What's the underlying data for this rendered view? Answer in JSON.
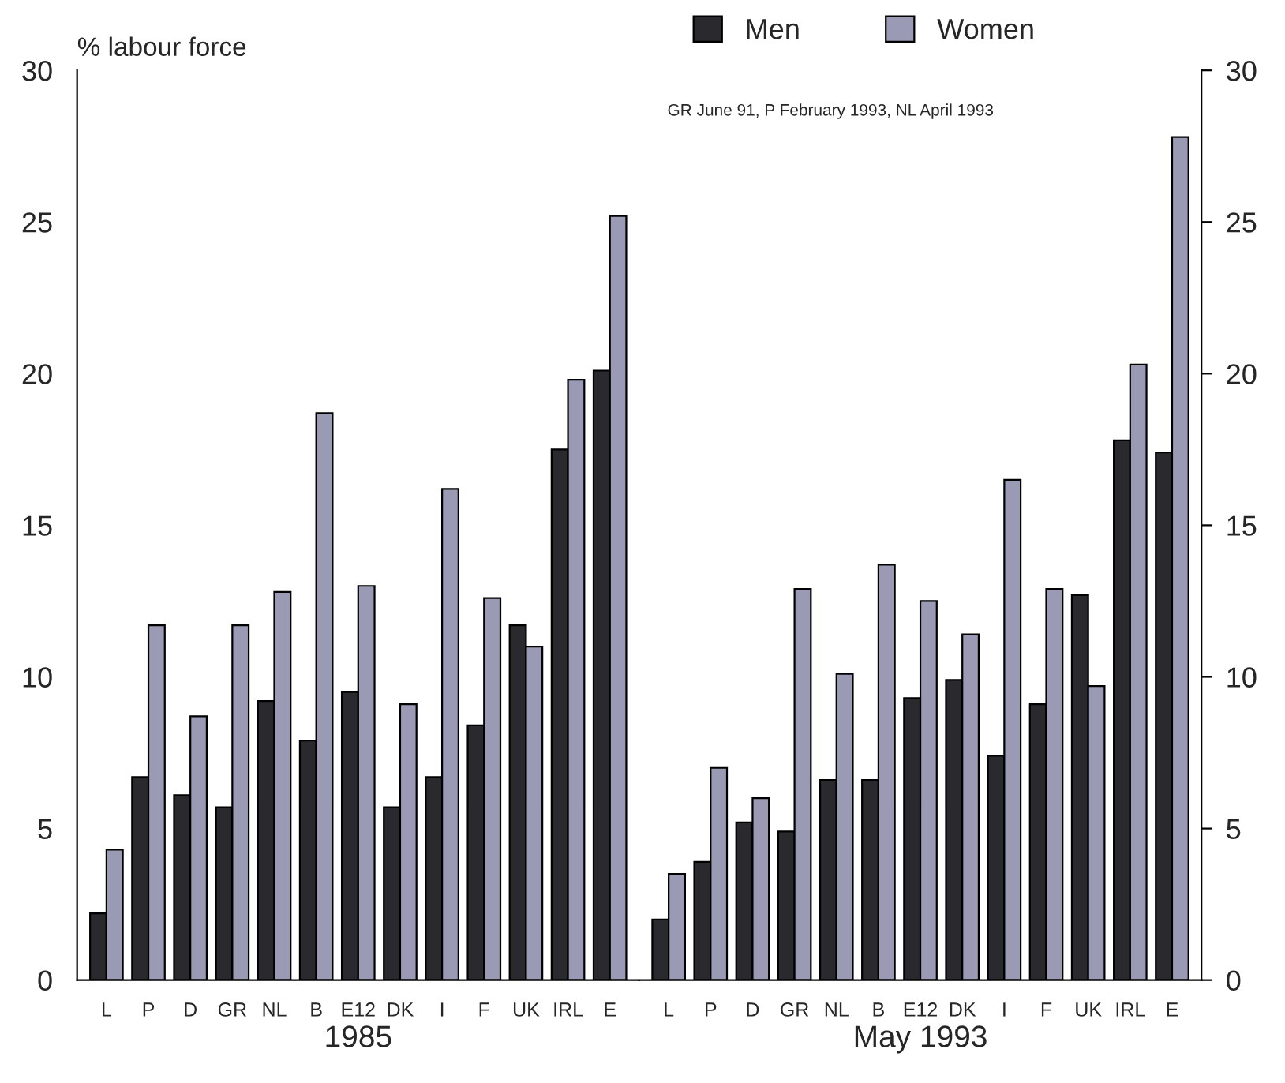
{
  "chart_data": [
    {
      "type": "bar",
      "xlabel": "1985",
      "ylabel": "% labour force",
      "categories": [
        "L",
        "P",
        "D",
        "GR",
        "NL",
        "B",
        "E12",
        "DK",
        "I",
        "F",
        "UK",
        "IRL",
        "E"
      ],
      "series": [
        {
          "color": "#2a2a2e",
          "values": [
            2.2,
            6.7,
            6.1,
            5.7,
            9.2,
            7.9,
            9.5,
            5.7,
            6.7,
            8.4,
            11.7,
            17.5,
            20.1
          ]
        },
        {
          "color": "#9a9ab4",
          "values": [
            4.3,
            11.7,
            8.7,
            11.7,
            12.8,
            18.7,
            13.0,
            9.1,
            16.2,
            12.6,
            11.0,
            19.8,
            25.2
          ]
        }
      ],
      "ylim": [
        0,
        30
      ],
      "yticks": [
        0,
        5,
        10,
        15,
        20,
        25,
        30
      ],
      "grid": false,
      "legend": false
    },
    {
      "type": "bar",
      "xlabel": "May 1993",
      "categories": [
        "L",
        "P",
        "D",
        "GR",
        "NL",
        "B",
        "E12",
        "DK",
        "I",
        "F",
        "UK",
        "IRL",
        "E"
      ],
      "series": [
        {
          "name": "Men",
          "color": "#2a2a2e",
          "axis": "y2",
          "values": [
            2.0,
            3.9,
            5.2,
            4.9,
            6.6,
            6.6,
            9.3,
            9.9,
            7.4,
            9.1,
            12.7,
            17.8,
            17.4
          ]
        },
        {
          "name": "Women",
          "color": "#9a9ab4",
          "axis": "y2",
          "values": [
            3.5,
            7.0,
            6.0,
            12.9,
            10.1,
            13.7,
            12.5,
            11.4,
            16.5,
            12.9,
            9.7,
            20.3,
            27.8
          ]
        }
      ],
      "y2lim": [
        0,
        30
      ],
      "y2ticks": [
        0,
        5,
        10,
        15,
        20,
        25,
        30
      ],
      "grid": false,
      "legend": "top",
      "annotations": [
        "GR June 91, P February 1993, NL April 1993"
      ]
    }
  ]
}
